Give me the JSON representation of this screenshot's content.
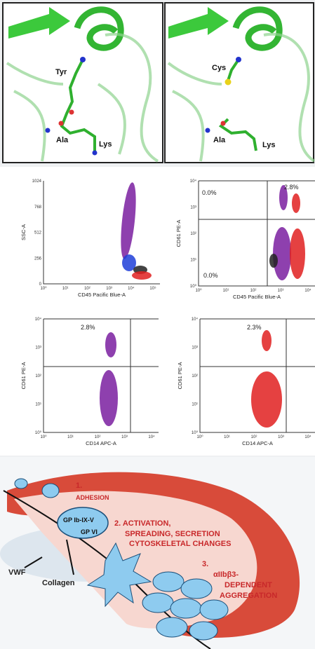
{
  "structure_panels": [
    {
      "labels": [
        "Tyr",
        "Ala",
        "Lys"
      ]
    },
    {
      "labels": [
        "Cys",
        "Ala",
        "Lys"
      ]
    }
  ],
  "flow_plots": [
    {
      "y_label": "SSC-A",
      "x_label": "CD45 Pacific Blue-A",
      "y_ticks": [
        "1024",
        "768",
        "512",
        "256",
        "0"
      ],
      "x_ticks": [
        "10⁰",
        "10¹",
        "10²",
        "10³",
        "10⁴",
        "10⁵"
      ],
      "gates": []
    },
    {
      "y_label": "CD61 PE-A",
      "x_label": "CD45 Pacific Blue-A",
      "y_ticks": [
        "10⁴",
        "10³",
        "10²",
        "10¹",
        "10⁰"
      ],
      "x_ticks": [
        "10⁰",
        "10¹",
        "10²",
        "10³",
        "10⁴"
      ],
      "gates": [
        "0.0%",
        "2.8%",
        "0.0%"
      ]
    },
    {
      "y_label": "CD61 PE-A",
      "x_label": "CD14 APC-A",
      "y_ticks": [
        "10⁴",
        "10³",
        "10²",
        "10¹",
        "10⁰"
      ],
      "x_ticks": [
        "10⁰",
        "10¹",
        "10²",
        "10³",
        "10⁴"
      ],
      "gates": [
        "2.8%"
      ]
    },
    {
      "y_label": "CD61 PE-A",
      "x_label": "CD14 APC-A",
      "y_ticks": [
        "10⁴",
        "10³",
        "10²",
        "10¹",
        "10⁰"
      ],
      "x_ticks": [
        "10⁰",
        "10¹",
        "10²",
        "10³",
        "10⁴"
      ],
      "gates": [
        "2.3%"
      ]
    }
  ],
  "diagram": {
    "step1_number": "1.",
    "step1_label": "ADHESION",
    "receptor1": "GP Ib-IX-V",
    "receptor2": "GP VI",
    "step2_lines": [
      "2. ACTIVATION,",
      "SPREADING, SECRETION",
      "CYTOSKELETAL CHANGES"
    ],
    "step3_number": "3.",
    "step3_lines": [
      "αIIbβ3-",
      "DEPENDENT",
      "AGGREGATION"
    ],
    "ligand1": "VWF",
    "ligand2": "Collagen"
  }
}
